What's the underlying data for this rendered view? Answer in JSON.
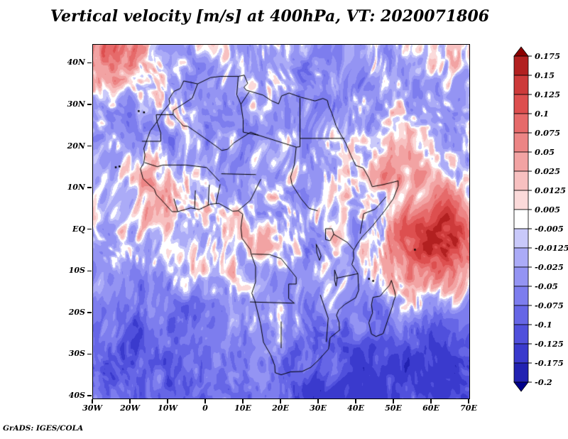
{
  "title": "Vertical velocity [m/s] at 400hPa, VT: 2020071806",
  "credit": "GrADS: IGES/COLA",
  "chart_data": {
    "type": "heatmap",
    "variable": "Vertical velocity",
    "units": "m/s",
    "pressure_level": "400hPa",
    "valid_time": "2020071806",
    "title": "Vertical velocity [m/s] at 400hPa, VT: 2020071806",
    "region": {
      "lon_min": -30,
      "lon_max": 70,
      "lat_min": -40.5,
      "lat_max": 44.5
    },
    "x_ticks": [
      "30W",
      "20W",
      "10W",
      "0",
      "10E",
      "20E",
      "30E",
      "40E",
      "50E",
      "60E",
      "70E"
    ],
    "x_tick_lons": [
      -30,
      -20,
      -10,
      0,
      10,
      20,
      30,
      40,
      50,
      60,
      70
    ],
    "y_ticks": [
      "40N",
      "30N",
      "20N",
      "10N",
      "EQ",
      "10S",
      "20S",
      "30S",
      "40S"
    ],
    "y_tick_lats": [
      40,
      30,
      20,
      10,
      0,
      -10,
      -20,
      -30,
      -40
    ],
    "grid": false,
    "legend_position": "right",
    "colorbar": {
      "labels_top_to_bottom": [
        "0.175",
        "0.15",
        "0.125",
        "0.1",
        "0.075",
        "0.05",
        "0.025",
        "0.0125",
        "0.005",
        "-0.005",
        "-0.0125",
        "-0.025",
        "-0.05",
        "-0.075",
        "-0.1",
        "-0.125",
        "-0.175",
        "-0.2"
      ],
      "levels_ascending": [
        -0.2,
        -0.175,
        -0.125,
        -0.1,
        -0.075,
        -0.05,
        -0.025,
        -0.0125,
        -0.005,
        0.005,
        0.0125,
        0.025,
        0.05,
        0.075,
        0.1,
        0.125,
        0.15,
        0.175
      ],
      "colors_ascending": [
        "#00008b",
        "#2222b2",
        "#3a3acd",
        "#5050dc",
        "#6666e6",
        "#7d7dee",
        "#9494f3",
        "#ababf7",
        "#c9c9fa",
        "#ffffff",
        "#fbdada",
        "#f7c0c0",
        "#f2a3a3",
        "#ec8585",
        "#e66a6a",
        "#dd4f4f",
        "#cd3a3a",
        "#b22020",
        "#8b0000"
      ]
    }
  }
}
